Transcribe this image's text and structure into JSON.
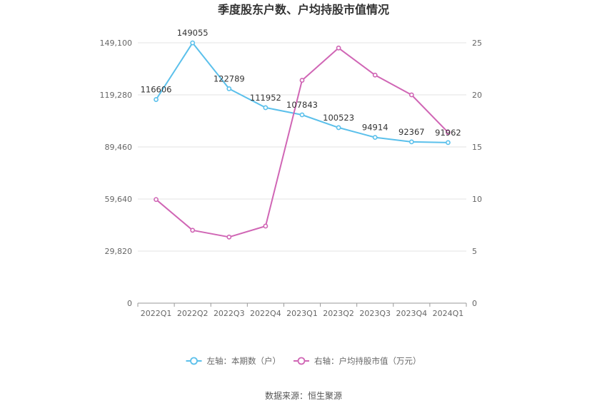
{
  "chart_data": {
    "type": "line",
    "title": "季度股东户数、户均持股市值情况",
    "categories": [
      "2022Q1",
      "2022Q2",
      "2022Q3",
      "2022Q4",
      "2023Q1",
      "2023Q2",
      "2023Q3",
      "2023Q4",
      "2024Q1"
    ],
    "series": [
      {
        "name": "左轴：本期数（户）",
        "axis": "left",
        "color": "#5bc0eb",
        "values": [
          116606,
          149055,
          122789,
          111952,
          107843,
          100523,
          94914,
          92367,
          91962
        ],
        "labels": [
          "116606",
          "149055",
          "122789",
          "111952",
          "107843",
          "100523",
          "94914",
          "92367",
          "91962"
        ]
      },
      {
        "name": "右轴：户均持股市值（万元）",
        "axis": "right",
        "color": "#d066b5",
        "values": [
          9.95,
          7.0,
          6.35,
          7.4,
          21.4,
          24.5,
          21.9,
          20.0,
          16.4
        ]
      }
    ],
    "left_axis": {
      "ylim": [
        0,
        149100
      ],
      "ticks": [
        0,
        29820,
        59640,
        89460,
        119280,
        149100
      ],
      "tick_labels": [
        "0",
        "29,820",
        "59,640",
        "89,460",
        "119,280",
        "149,100"
      ]
    },
    "right_axis": {
      "ylim": [
        0,
        25
      ],
      "ticks": [
        0,
        5,
        10,
        15,
        20,
        25
      ],
      "tick_labels": [
        "0",
        "5",
        "10",
        "15",
        "20",
        "25"
      ]
    },
    "grid": true,
    "legend_position": "bottom",
    "source": "数据来源：恒生聚源"
  }
}
